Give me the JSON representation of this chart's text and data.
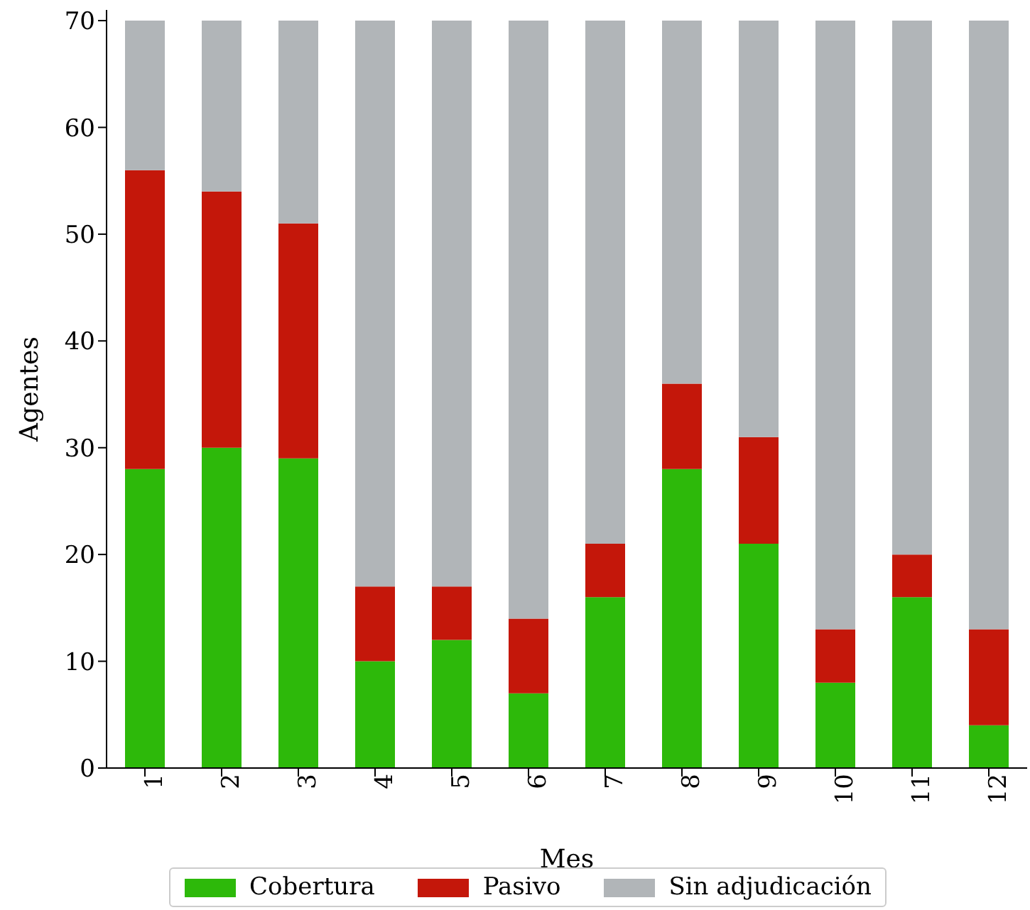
{
  "chart_data": {
    "type": "bar",
    "stacked": true,
    "xlabel": "Mes",
    "ylabel": "Agentes",
    "categories": [
      "1",
      "2",
      "3",
      "4",
      "5",
      "6",
      "7",
      "8",
      "9",
      "10",
      "11",
      "12"
    ],
    "series": [
      {
        "name": "Cobertura",
        "color": "#2db90a",
        "values": [
          28,
          30,
          29,
          10,
          12,
          7,
          16,
          28,
          21,
          8,
          16,
          4
        ]
      },
      {
        "name": "Pasivo",
        "color": "#c4170a",
        "values": [
          28,
          24,
          22,
          7,
          5,
          7,
          5,
          8,
          10,
          5,
          4,
          9
        ]
      },
      {
        "name": "Sin adjudicación",
        "color": "#b1b5b8",
        "values": [
          14,
          16,
          19,
          53,
          53,
          56,
          49,
          34,
          39,
          57,
          50,
          57
        ]
      }
    ],
    "ylim": [
      0,
      71
    ],
    "yticks": [
      0,
      10,
      20,
      30,
      40,
      50,
      60,
      70
    ],
    "grid": false,
    "legend": "bottom"
  }
}
